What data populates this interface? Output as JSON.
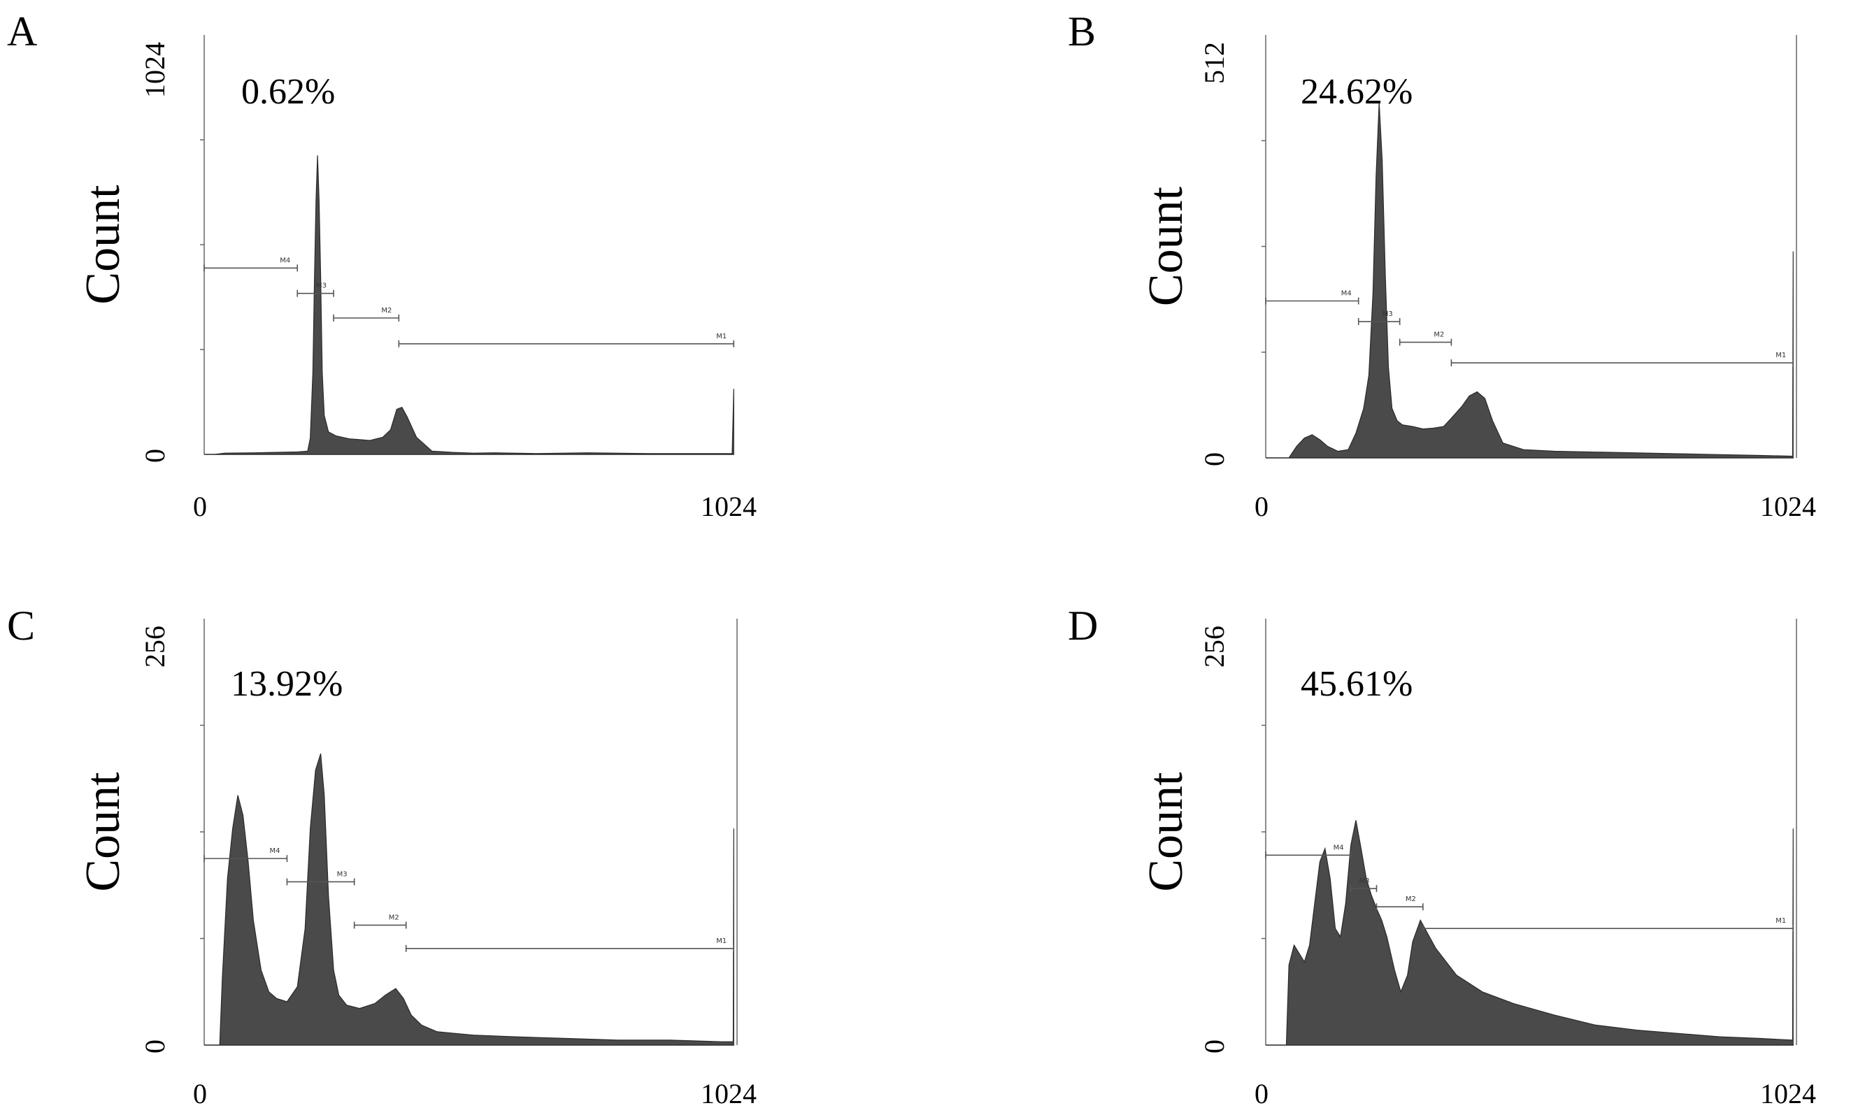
{
  "figure": {
    "axis_text_color": "#000000",
    "histogram_fill": "#4a4a4a",
    "gate_color": "#555555"
  },
  "chart_data": [
    {
      "panel_label": "A",
      "type": "area",
      "annotation": "0.62%",
      "ylabel": "Count",
      "xlim": [
        0,
        1024
      ],
      "ylim": [
        0,
        1024
      ],
      "x_ticks": [
        "0",
        "1024"
      ],
      "y_ticks": [
        "0",
        "1024"
      ],
      "gates": [
        {
          "name": "M4",
          "x": [
            0,
            180
          ],
          "y": 455
        },
        {
          "name": "M3",
          "x": [
            180,
            250
          ],
          "y": 393
        },
        {
          "name": "M2",
          "x": [
            250,
            376
          ],
          "y": 333
        },
        {
          "name": "M1",
          "x": [
            376,
            1023
          ],
          "y": 270
        }
      ],
      "histogram": {
        "x": [
          0,
          20,
          40,
          100,
          180,
          200,
          205,
          210,
          213,
          216,
          219,
          222,
          225,
          228,
          232,
          240,
          255,
          280,
          300,
          320,
          345,
          360,
          372,
          382,
          392,
          410,
          440,
          480,
          520,
          560,
          640,
          740,
          860,
          1000,
          1020,
          1023
        ],
        "y": [
          0,
          0,
          3,
          4,
          6,
          8,
          40,
          200,
          430,
          620,
          730,
          620,
          430,
          200,
          95,
          55,
          45,
          38,
          36,
          34,
          42,
          60,
          110,
          115,
          92,
          42,
          8,
          5,
          3,
          4,
          2,
          4,
          2,
          2,
          2,
          160
        ]
      }
    },
    {
      "panel_label": "B",
      "type": "area",
      "annotation": "24.62%",
      "ylabel": "Count",
      "xlim": [
        0,
        1024
      ],
      "ylim": [
        0,
        512
      ],
      "x_ticks": [
        "0",
        "1024"
      ],
      "y_ticks": [
        "0",
        "512"
      ],
      "gates": [
        {
          "name": "M4",
          "x": [
            0,
            180
          ],
          "y": 190
        },
        {
          "name": "M3",
          "x": [
            180,
            260
          ],
          "y": 165
        },
        {
          "name": "M2",
          "x": [
            260,
            360
          ],
          "y": 140
        },
        {
          "name": "M1",
          "x": [
            360,
            1023
          ],
          "y": 115
        }
      ],
      "histogram": {
        "x": [
          0,
          45,
          60,
          75,
          90,
          105,
          120,
          140,
          160,
          175,
          190,
          200,
          208,
          214,
          220,
          226,
          232,
          238,
          245,
          255,
          265,
          285,
          305,
          325,
          345,
          360,
          380,
          395,
          410,
          425,
          440,
          460,
          500,
          560,
          640,
          720,
          800,
          880,
          960,
          1022,
          1023
        ],
        "y": [
          0,
          0,
          14,
          24,
          28,
          22,
          14,
          8,
          10,
          30,
          60,
          100,
          200,
          340,
          430,
          360,
          220,
          110,
          60,
          45,
          40,
          38,
          35,
          36,
          38,
          48,
          62,
          75,
          80,
          72,
          45,
          18,
          10,
          8,
          7,
          6,
          5,
          4,
          3,
          2,
          250
        ]
      }
    },
    {
      "panel_label": "C",
      "type": "area",
      "annotation": "13.92%",
      "ylabel": "Count",
      "xlim": [
        0,
        1024
      ],
      "ylim": [
        0,
        256
      ],
      "x_ticks": [
        "0",
        "1024"
      ],
      "y_ticks": [
        "0",
        "256"
      ],
      "gates": [
        {
          "name": "M4",
          "x": [
            0,
            160
          ],
          "y": 112
        },
        {
          "name": "M3",
          "x": [
            160,
            290
          ],
          "y": 98
        },
        {
          "name": "M2",
          "x": [
            290,
            390
          ],
          "y": 72
        },
        {
          "name": "M1",
          "x": [
            390,
            1023
          ],
          "y": 58
        }
      ],
      "histogram": {
        "x": [
          0,
          30,
          35,
          45,
          55,
          65,
          75,
          85,
          95,
          110,
          125,
          140,
          160,
          180,
          195,
          205,
          215,
          225,
          232,
          240,
          250,
          260,
          275,
          300,
          330,
          350,
          370,
          385,
          400,
          420,
          450,
          520,
          600,
          700,
          800,
          900,
          1000,
          1022,
          1023
        ],
        "y": [
          0,
          0,
          40,
          100,
          130,
          150,
          138,
          110,
          75,
          45,
          32,
          28,
          26,
          35,
          70,
          130,
          165,
          175,
          150,
          90,
          45,
          30,
          24,
          22,
          25,
          30,
          34,
          28,
          18,
          12,
          8,
          6,
          5,
          4,
          3,
          3,
          2,
          2,
          130
        ]
      }
    },
    {
      "panel_label": "D",
      "type": "area",
      "annotation": "45.61%",
      "ylabel": "Count",
      "xlim": [
        0,
        1024
      ],
      "ylim": [
        0,
        256
      ],
      "x_ticks": [
        "0",
        "1024"
      ],
      "y_ticks": [
        "0",
        "256"
      ],
      "gates": [
        {
          "name": "M4",
          "x": [
            0,
            165
          ],
          "y": 114
        },
        {
          "name": "M3",
          "x": [
            165,
            215
          ],
          "y": 94
        },
        {
          "name": "M2",
          "x": [
            215,
            305
          ],
          "y": 83
        },
        {
          "name": "M1",
          "x": [
            305,
            1023
          ],
          "y": 70
        }
      ],
      "histogram": {
        "x": [
          0,
          40,
          45,
          55,
          65,
          75,
          85,
          95,
          105,
          115,
          125,
          135,
          145,
          155,
          165,
          175,
          185,
          195,
          205,
          215,
          225,
          235,
          250,
          262,
          275,
          285,
          300,
          330,
          370,
          420,
          480,
          560,
          640,
          720,
          800,
          880,
          960,
          1022,
          1023
        ],
        "y": [
          0,
          0,
          48,
          60,
          55,
          50,
          60,
          85,
          110,
          118,
          100,
          70,
          65,
          85,
          120,
          135,
          118,
          100,
          90,
          82,
          75,
          65,
          45,
          32,
          42,
          62,
          75,
          58,
          42,
          32,
          25,
          18,
          12,
          9,
          7,
          5,
          4,
          3,
          130
        ]
      }
    }
  ]
}
